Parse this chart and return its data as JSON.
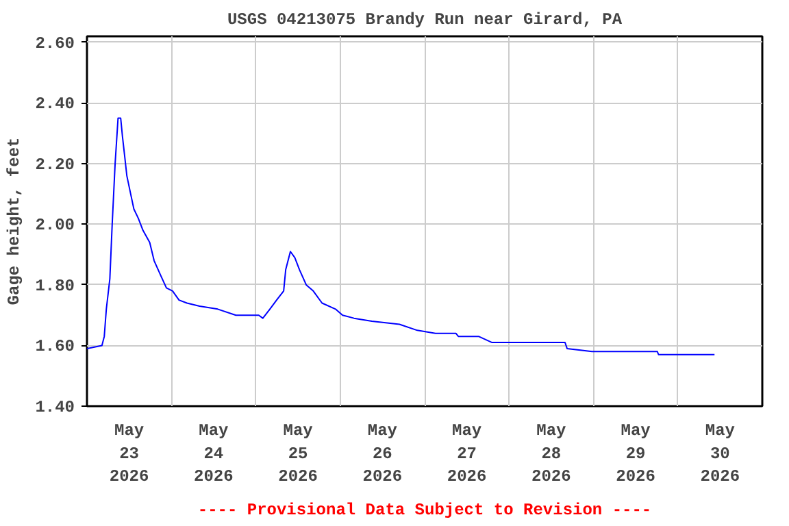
{
  "chart_data": {
    "type": "line",
    "title": "USGS 04213075 Brandy Run near Girard, PA",
    "ylabel": "Gage height, feet",
    "annotations": [
      "---- Provisional Data Subject to Revision ----"
    ],
    "x": [
      "2026-05-23T00:00",
      "2026-05-23T04:15",
      "2026-05-23T04:55",
      "2026-05-23T05:30",
      "2026-05-23T06:30",
      "2026-05-23T07:10",
      "2026-05-23T08:00",
      "2026-05-23T08:50",
      "2026-05-23T09:35",
      "2026-05-23T10:05",
      "2026-05-23T10:40",
      "2026-05-23T11:20",
      "2026-05-23T12:25",
      "2026-05-23T13:20",
      "2026-05-23T14:35",
      "2026-05-23T15:55",
      "2026-05-23T17:50",
      "2026-05-23T19:05",
      "2026-05-23T21:00",
      "2026-05-23T22:35",
      "2026-05-24T00:20",
      "2026-05-24T02:10",
      "2026-05-24T04:25",
      "2026-05-24T08:00",
      "2026-05-24T13:10",
      "2026-05-24T18:20",
      "2026-05-25T00:50",
      "2026-05-25T02:00",
      "2026-05-25T04:00",
      "2026-05-25T05:55",
      "2026-05-25T07:55",
      "2026-05-25T08:30",
      "2026-05-25T09:50",
      "2026-05-25T11:05",
      "2026-05-25T12:25",
      "2026-05-25T14:20",
      "2026-05-25T16:20",
      "2026-05-25T18:50",
      "2026-05-25T22:40",
      "2026-05-26T00:40",
      "2026-05-26T03:55",
      "2026-05-26T09:00",
      "2026-05-26T16:50",
      "2026-05-26T21:55",
      "2026-05-27T03:05",
      "2026-05-27T08:55",
      "2026-05-27T09:35",
      "2026-05-27T15:20",
      "2026-05-27T19:10",
      "2026-05-28T15:55",
      "2026-05-28T16:30",
      "2026-05-28T23:35",
      "2026-05-29T18:10",
      "2026-05-29T18:30",
      "2026-05-30T10:25"
    ],
    "series": [
      {
        "color": "#0000ff",
        "values": [
          1.59,
          1.6,
          1.63,
          1.72,
          1.82,
          2.0,
          2.2,
          2.35,
          2.35,
          2.29,
          2.23,
          2.16,
          2.1,
          2.05,
          2.02,
          1.98,
          1.94,
          1.88,
          1.83,
          1.79,
          1.78,
          1.75,
          1.74,
          1.73,
          1.72,
          1.7,
          1.7,
          1.69,
          1.72,
          1.75,
          1.78,
          1.85,
          1.91,
          1.89,
          1.85,
          1.8,
          1.78,
          1.74,
          1.72,
          1.7,
          1.69,
          1.68,
          1.67,
          1.65,
          1.64,
          1.64,
          1.63,
          1.63,
          1.61,
          1.61,
          1.59,
          1.58,
          1.58,
          1.57,
          1.57
        ]
      }
    ],
    "xlim": [
      "2026-05-23T00:00",
      "2026-05-31T00:00"
    ],
    "xticks": [
      {
        "value": "2026-05-24",
        "label": null
      },
      {
        "value": "2026-05-25",
        "label": null
      },
      {
        "value": "2026-05-26",
        "label": null
      },
      {
        "value": "2026-05-27",
        "label": null
      },
      {
        "value": "2026-05-28",
        "label": null
      },
      {
        "value": "2026-05-29",
        "label": null
      },
      {
        "value": "2026-05-30",
        "label": null
      },
      {
        "value": "2026-05-23T12:00",
        "label": "May\n23\n2026"
      },
      {
        "value": "2026-05-24T12:00",
        "label": "May\n24\n2026"
      },
      {
        "value": "2026-05-25T12:00",
        "label": "May\n25\n2026"
      },
      {
        "value": "2026-05-26T12:00",
        "label": "May\n26\n2026"
      },
      {
        "value": "2026-05-27T12:00",
        "label": "May\n27\n2026"
      },
      {
        "value": "2026-05-28T12:00",
        "label": "May\n28\n2026"
      },
      {
        "value": "2026-05-29T12:00",
        "label": "May\n29\n2026"
      },
      {
        "value": "2026-05-30T12:00",
        "label": "May\n30\n2026"
      }
    ],
    "ylim": [
      1.4,
      2.62
    ],
    "yticks": [
      {
        "value": 1.4,
        "label": "1.40"
      },
      {
        "value": 1.6,
        "label": "1.60"
      },
      {
        "value": 1.8,
        "label": "1.80"
      },
      {
        "value": 2.0,
        "label": "2.00"
      },
      {
        "value": 2.2,
        "label": "2.20"
      },
      {
        "value": 2.4,
        "label": "2.40"
      },
      {
        "value": 2.6,
        "label": "2.60"
      }
    ],
    "grid": true,
    "marker": "none",
    "line_style": "solid"
  }
}
